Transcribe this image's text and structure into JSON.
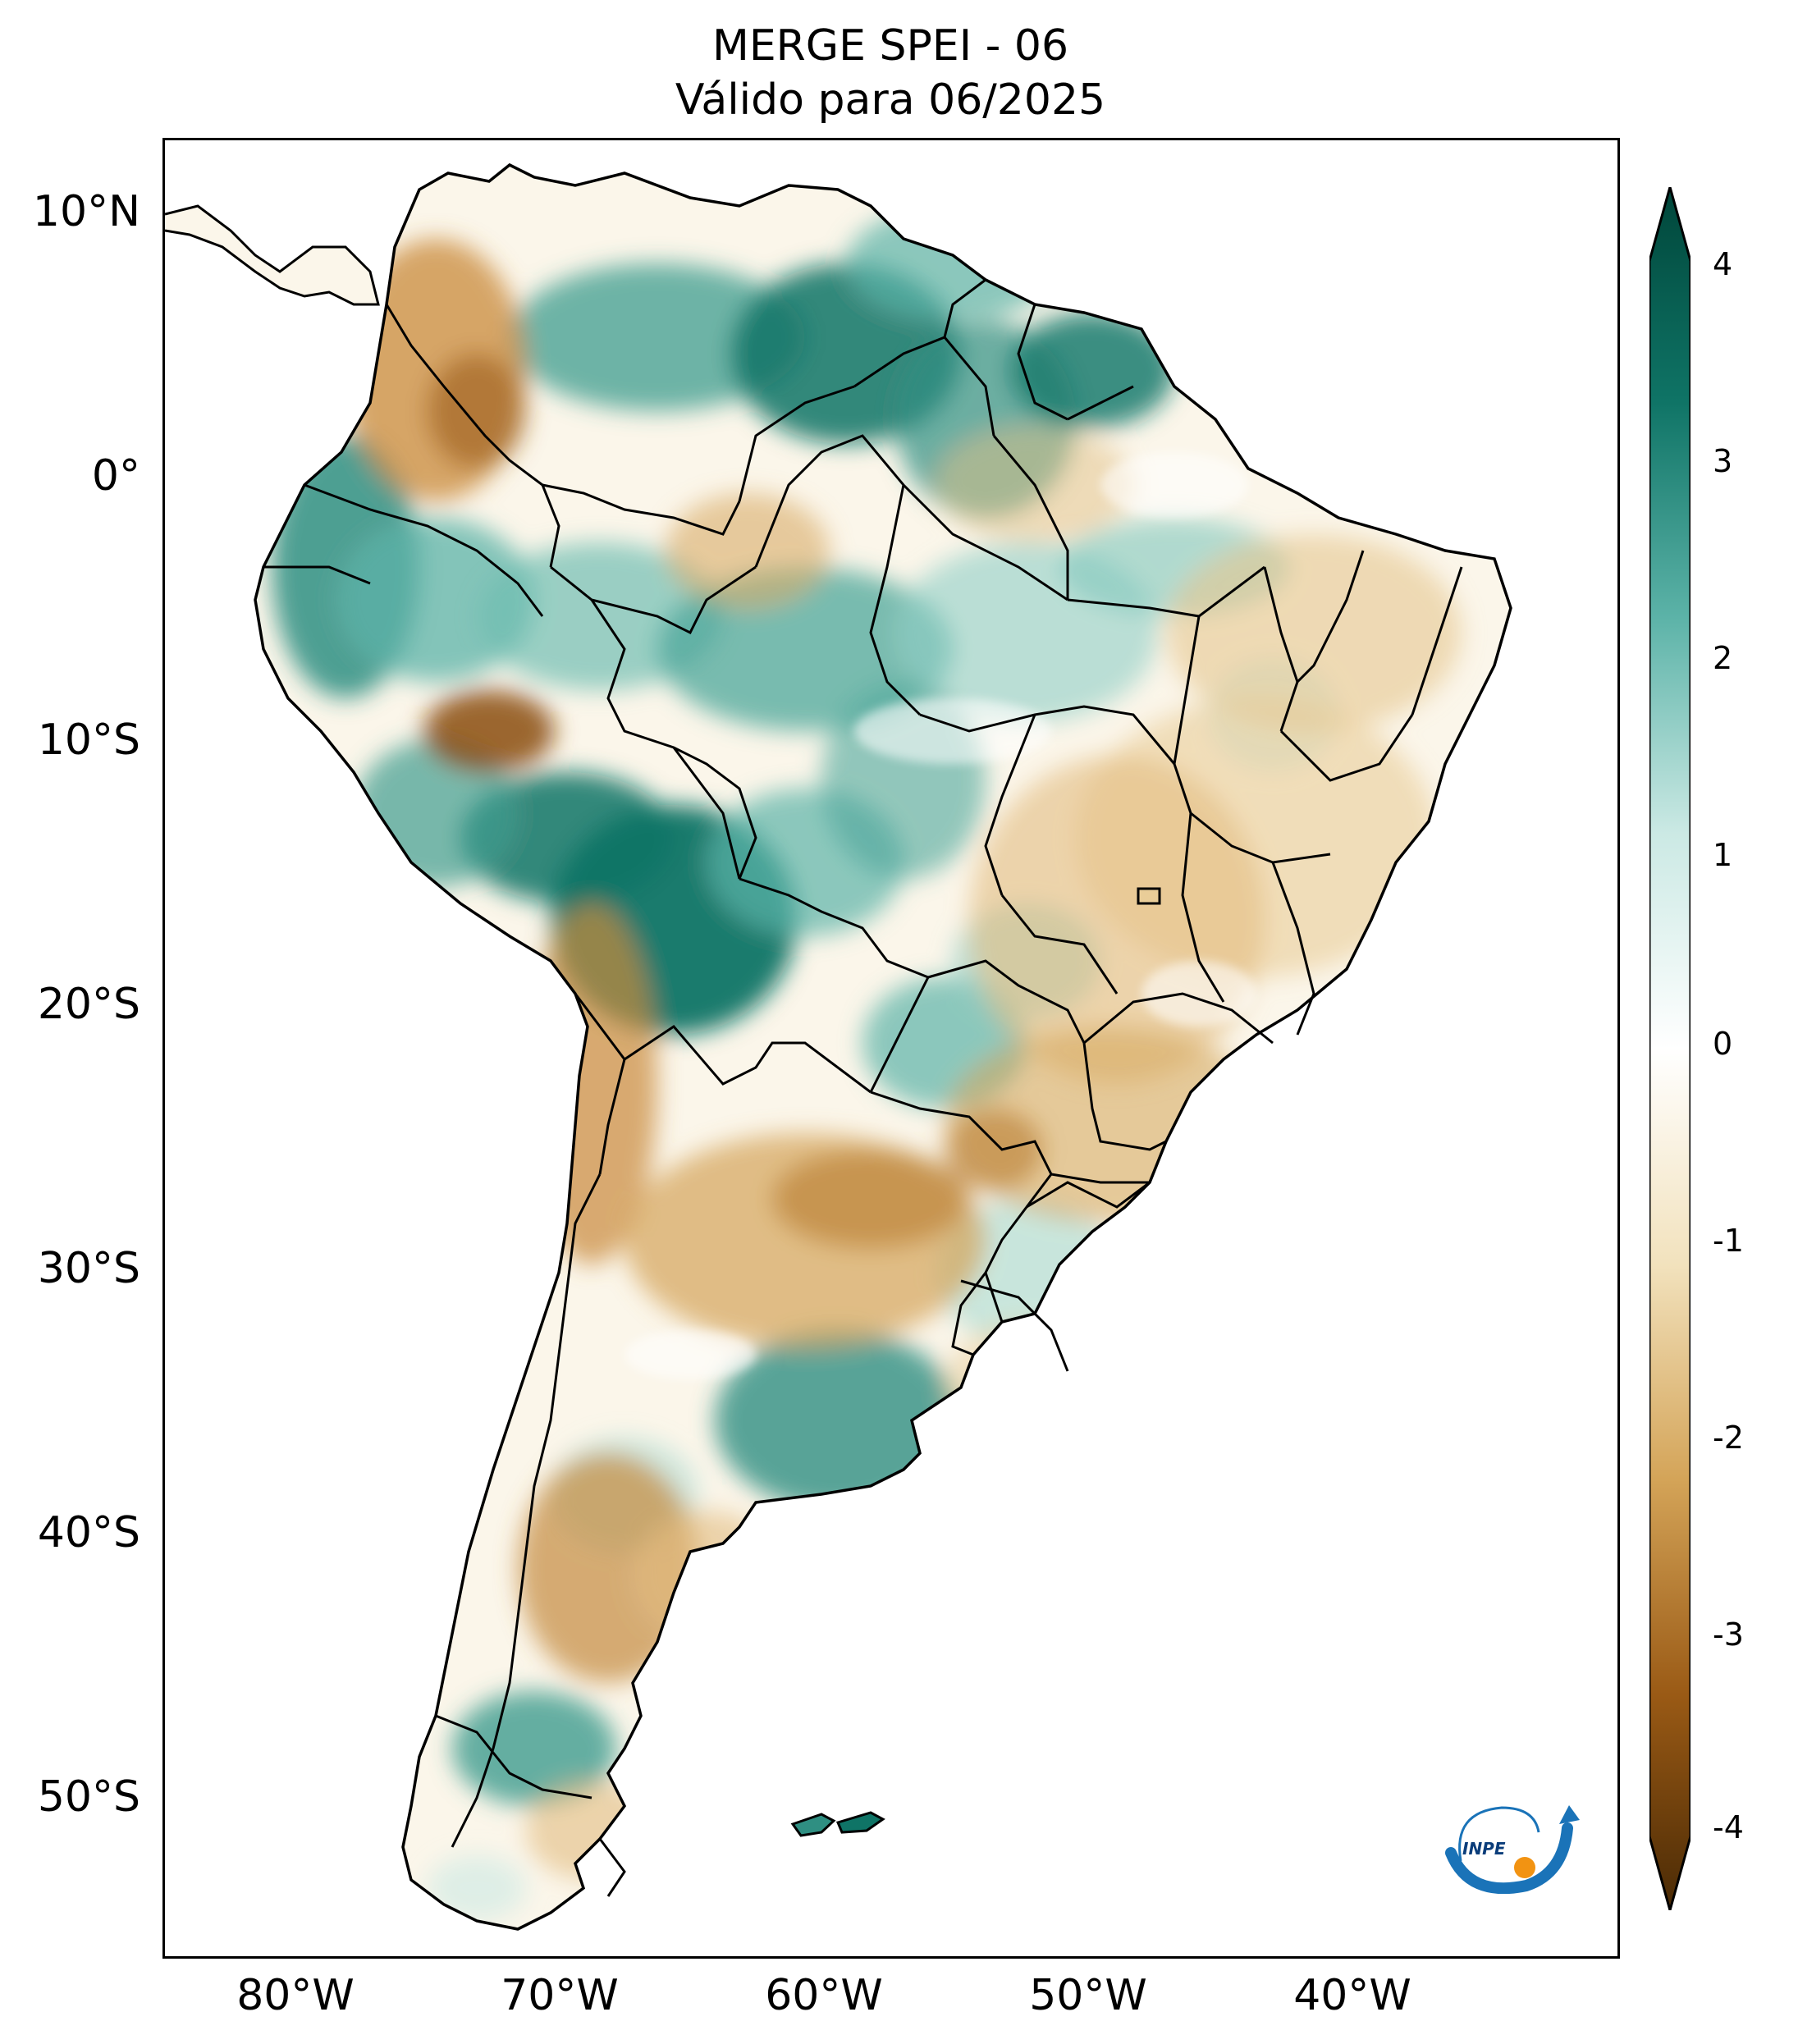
{
  "title": {
    "line1": "MERGE   SPEI - 06",
    "line2": "Válido para 06/2025"
  },
  "axes": {
    "lat_labels": [
      "10°N",
      "0°",
      "10°S",
      "20°S",
      "30°S",
      "40°S",
      "50°S"
    ],
    "lon_labels": [
      "80°W",
      "70°W",
      "60°W",
      "50°W",
      "40°W"
    ]
  },
  "colorbar": {
    "ticks": [
      "4",
      "3",
      "2",
      "1",
      "0",
      "-1",
      "-2",
      "-3",
      "-4"
    ],
    "colors": {
      "wet_extreme": "#00463a",
      "wet_strong": "#0f7466",
      "wet_moderate": "#5cb3a8",
      "wet_light": "#cbe9e4",
      "neutral": "#ffffff",
      "dry_light": "#f2e2bd",
      "dry_moderate": "#d4a458",
      "dry_strong": "#9a5a15",
      "dry_extreme": "#4a2a05"
    }
  },
  "logo": {
    "text": "INPE"
  }
}
